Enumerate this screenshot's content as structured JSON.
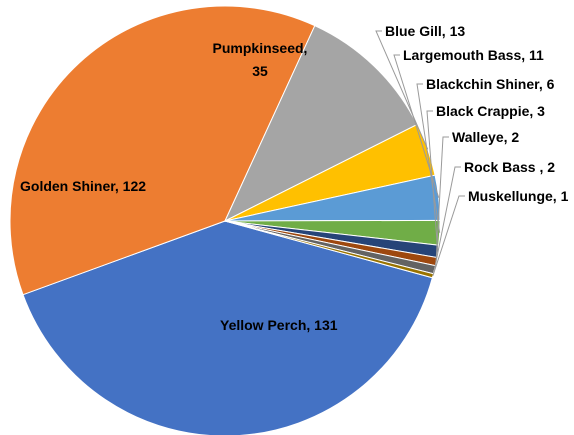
{
  "chart_data": {
    "type": "pie",
    "title": "",
    "slices": [
      {
        "label": "Yellow Perch",
        "value": 131,
        "display": "Yellow Perch, 131",
        "color": "#4472C4"
      },
      {
        "label": "Golden Shiner",
        "value": 122,
        "display": "Golden Shiner, 122",
        "color": "#ED7D31"
      },
      {
        "label": "Pumpkinseed",
        "value": 35,
        "display_lines": [
          "Pumpkinseed,",
          "35"
        ],
        "color": "#A5A5A5"
      },
      {
        "label": "Blue Gill",
        "value": 13,
        "display": "Blue Gill, 13",
        "color": "#FFC000"
      },
      {
        "label": "Largemouth Bass",
        "value": 11,
        "display": "Largemouth Bass, 11",
        "color": "#5B9BD5"
      },
      {
        "label": "Blackchin Shiner",
        "value": 6,
        "display": "Blackchin Shiner, 6",
        "color": "#70AD47"
      },
      {
        "label": "Black Crappie",
        "value": 3,
        "display": "Black Crappie, 3",
        "color": "#264478"
      },
      {
        "label": "Walleye",
        "value": 2,
        "display": "Walleye, 2",
        "color": "#9E480E"
      },
      {
        "label": "Rock Bass ",
        "value": 2,
        "display": "Rock Bass , 2",
        "color": "#636363"
      },
      {
        "label": "Muskellunge",
        "value": 1,
        "display": "Muskellunge, 1",
        "color": "#997300"
      }
    ],
    "legend": "none",
    "data_labels": "category, value"
  }
}
